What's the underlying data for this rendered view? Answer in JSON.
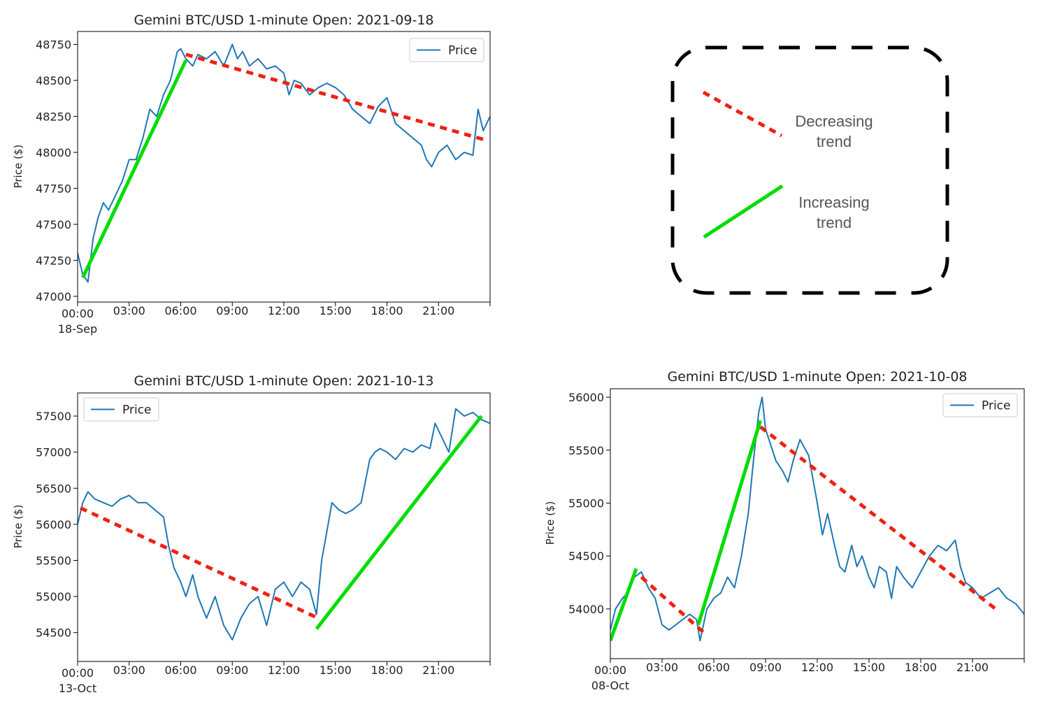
{
  "chart_data": [
    {
      "type": "line",
      "title": "Gemini BTC/USD 1-minute Open: 2021-09-18",
      "xlabel": "",
      "ylabel": "Price ($)",
      "x_ticks": [
        "00:00",
        "03:00",
        "06:00",
        "09:00",
        "12:00",
        "15:00",
        "18:00",
        "21:00"
      ],
      "x_date_label": "18-Sep",
      "xlim_hours": [
        0,
        24
      ],
      "y_ticks": [
        47000,
        47250,
        47500,
        47750,
        48000,
        48250,
        48500,
        48750
      ],
      "ylim": [
        46960,
        48840
      ],
      "legend": {
        "label": "Price",
        "position": "top-right"
      },
      "series": [
        {
          "name": "Price",
          "color": "#1f77b4",
          "x_hours": [
            0,
            0.3,
            0.6,
            0.9,
            1.2,
            1.5,
            1.8,
            2.2,
            2.6,
            3.0,
            3.4,
            3.8,
            4.2,
            4.6,
            5.0,
            5.4,
            5.8,
            6.0,
            6.3,
            6.7,
            7.0,
            7.5,
            8.0,
            8.5,
            9.0,
            9.3,
            9.6,
            10.0,
            10.5,
            11.0,
            11.5,
            12.0,
            12.3,
            12.6,
            13.0,
            13.5,
            14.0,
            14.5,
            15.0,
            15.5,
            16.0,
            16.5,
            17.0,
            17.5,
            18.0,
            18.5,
            19.0,
            19.5,
            20.0,
            20.3,
            20.6,
            21.0,
            21.5,
            22.0,
            22.5,
            23.0,
            23.3,
            23.6,
            24.0
          ],
          "values": [
            47300,
            47150,
            47100,
            47400,
            47550,
            47650,
            47600,
            47700,
            47800,
            47950,
            47950,
            48100,
            48300,
            48250,
            48400,
            48500,
            48700,
            48720,
            48650,
            48600,
            48680,
            48650,
            48700,
            48600,
            48750,
            48650,
            48700,
            48600,
            48650,
            48580,
            48600,
            48550,
            48400,
            48500,
            48480,
            48400,
            48450,
            48480,
            48450,
            48400,
            48300,
            48250,
            48200,
            48320,
            48380,
            48200,
            48150,
            48100,
            48050,
            47950,
            47900,
            48000,
            48050,
            47950,
            48000,
            47980,
            48300,
            48150,
            48250
          ]
        },
        {
          "name": "trend-increasing",
          "style": "solid",
          "color": "#00dd00",
          "x_hours": [
            0.3,
            6.3
          ],
          "values": [
            47130,
            48640
          ]
        },
        {
          "name": "trend-decreasing",
          "style": "dashed",
          "color": "#ee2211",
          "x_hours": [
            6.3,
            23.9
          ],
          "values": [
            48680,
            48080
          ]
        }
      ]
    },
    {
      "type": "line",
      "title": "Gemini BTC/USD 1-minute Open: 2021-10-13",
      "xlabel": "",
      "ylabel": "Price ($)",
      "x_ticks": [
        "00:00",
        "03:00",
        "06:00",
        "09:00",
        "12:00",
        "15:00",
        "18:00",
        "21:00"
      ],
      "x_date_label": "13-Oct",
      "xlim_hours": [
        0,
        24
      ],
      "y_ticks": [
        54500,
        55000,
        55500,
        56000,
        56500,
        57000,
        57500
      ],
      "ylim": [
        54100,
        57820
      ],
      "legend": {
        "label": "Price",
        "position": "top-left"
      },
      "series": [
        {
          "name": "Price",
          "color": "#1f77b4",
          "x_hours": [
            0,
            0.3,
            0.6,
            1.0,
            1.5,
            2.0,
            2.5,
            3.0,
            3.5,
            4.0,
            4.5,
            5.0,
            5.3,
            5.6,
            6.0,
            6.3,
            6.7,
            7.0,
            7.5,
            8.0,
            8.5,
            9.0,
            9.5,
            10.0,
            10.5,
            11.0,
            11.5,
            12.0,
            12.5,
            13.0,
            13.5,
            13.9,
            14.2,
            14.5,
            14.8,
            15.2,
            15.6,
            16.0,
            16.5,
            17.0,
            17.3,
            17.6,
            18.0,
            18.5,
            19.0,
            19.5,
            20.0,
            20.5,
            20.8,
            21.2,
            21.6,
            22.0,
            22.5,
            23.0,
            23.5,
            24.0
          ],
          "values": [
            56000,
            56300,
            56450,
            56350,
            56300,
            56250,
            56350,
            56400,
            56300,
            56300,
            56200,
            56100,
            55700,
            55400,
            55200,
            55000,
            55300,
            55000,
            54700,
            55000,
            54600,
            54400,
            54700,
            54900,
            55000,
            54600,
            55100,
            55200,
            55000,
            55200,
            55100,
            54750,
            55500,
            55900,
            56300,
            56200,
            56150,
            56200,
            56300,
            56900,
            57000,
            57050,
            57000,
            56900,
            57050,
            57000,
            57100,
            57050,
            57400,
            57200,
            57000,
            57600,
            57500,
            57550,
            57450,
            57400
          ]
        },
        {
          "name": "trend-decreasing",
          "style": "dashed",
          "color": "#ee2211",
          "x_hours": [
            -0.5,
            14.0
          ],
          "values": [
            56300,
            54700
          ]
        },
        {
          "name": "trend-increasing",
          "style": "solid",
          "color": "#00dd00",
          "x_hours": [
            13.9,
            23.5
          ],
          "values": [
            54550,
            57500
          ]
        }
      ]
    },
    {
      "type": "line",
      "title": "Gemini BTC/USD 1-minute Open: 2021-10-08",
      "xlabel": "",
      "ylabel": "Price ($)",
      "x_ticks": [
        "00:00",
        "03:00",
        "06:00",
        "09:00",
        "12:00",
        "15:00",
        "18:00",
        "21:00"
      ],
      "x_date_label": "08-Oct",
      "xlim_hours": [
        0,
        24
      ],
      "y_ticks": [
        54000,
        54500,
        55000,
        55500,
        56000
      ],
      "ylim": [
        53530,
        56080
      ],
      "legend": {
        "label": "Price",
        "position": "top-right"
      },
      "series": [
        {
          "name": "Price",
          "color": "#1f77b4",
          "x_hours": [
            0,
            0.3,
            0.7,
            1.0,
            1.4,
            1.8,
            2.2,
            2.6,
            3.0,
            3.4,
            3.8,
            4.2,
            4.6,
            5.0,
            5.2,
            5.6,
            6.0,
            6.4,
            6.8,
            7.2,
            7.6,
            8.0,
            8.3,
            8.6,
            8.8,
            9.0,
            9.3,
            9.6,
            10.0,
            10.3,
            10.6,
            11.0,
            11.5,
            12.0,
            12.3,
            12.6,
            13.0,
            13.3,
            13.6,
            14.0,
            14.3,
            14.6,
            15.0,
            15.3,
            15.6,
            16.0,
            16.3,
            16.6,
            17.0,
            17.5,
            18.0,
            18.5,
            19.0,
            19.5,
            20.0,
            20.3,
            20.6,
            21.0,
            21.5,
            22.0,
            22.5,
            23.0,
            23.5,
            24.0
          ],
          "values": [
            53800,
            54000,
            54100,
            54150,
            54300,
            54350,
            54200,
            54100,
            53850,
            53800,
            53850,
            53900,
            53950,
            53900,
            53700,
            54000,
            54100,
            54150,
            54300,
            54200,
            54500,
            54900,
            55400,
            55850,
            56000,
            55700,
            55550,
            55400,
            55300,
            55200,
            55400,
            55600,
            55450,
            55000,
            54700,
            54900,
            54600,
            54400,
            54350,
            54600,
            54400,
            54500,
            54300,
            54200,
            54400,
            54350,
            54100,
            54400,
            54300,
            54200,
            54350,
            54500,
            54600,
            54550,
            54650,
            54400,
            54250,
            54200,
            54100,
            54150,
            54200,
            54100,
            54050,
            53950
          ]
        },
        {
          "name": "trend-increasing",
          "style": "solid",
          "color": "#00dd00",
          "x_hours": [
            0,
            1.5
          ],
          "values": [
            53700,
            54380
          ]
        },
        {
          "name": "trend-decreasing",
          "style": "dashed",
          "color": "#ee2211",
          "x_hours": [
            1.8,
            5.4
          ],
          "values": [
            54300,
            53780
          ]
        },
        {
          "name": "trend-increasing",
          "style": "solid",
          "color": "#00dd00",
          "x_hours": [
            5.1,
            8.7
          ],
          "values": [
            53850,
            55780
          ]
        },
        {
          "name": "trend-decreasing",
          "style": "dashed",
          "color": "#ee2211",
          "x_hours": [
            8.7,
            22.5
          ],
          "values": [
            55720,
            53980
          ]
        }
      ]
    }
  ],
  "legend_key": {
    "decreasing_line1": "Decreasing",
    "decreasing_line2": "trend",
    "increasing_line1": "Increasing",
    "increasing_line2": "trend"
  },
  "colors": {
    "price": "#1f77b4",
    "increasing": "#00dd00",
    "decreasing": "#ee2211",
    "key_text": "#555555"
  }
}
